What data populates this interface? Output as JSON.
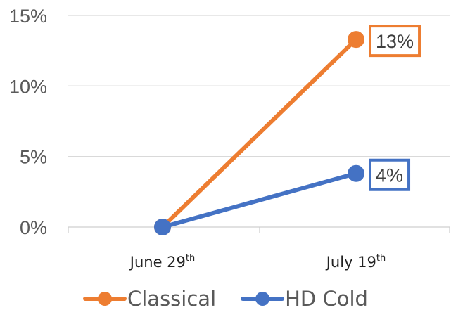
{
  "chart_data": {
    "type": "line",
    "categories": [
      {
        "label": "June 29",
        "suffix": "th"
      },
      {
        "label": "July 19",
        "suffix": "th"
      }
    ],
    "series": [
      {
        "name": "Classical",
        "color": "#ED7D31",
        "values": [
          0,
          13.3
        ],
        "end_label": "13%"
      },
      {
        "name": "HD Cold",
        "color": "#4472C4",
        "values": [
          0,
          3.8
        ],
        "end_label": "4%"
      }
    ],
    "yticks": [
      "0%",
      "5%",
      "10%",
      "15%"
    ],
    "ylim": [
      0,
      15
    ],
    "grid": true,
    "legend": "bottom"
  }
}
